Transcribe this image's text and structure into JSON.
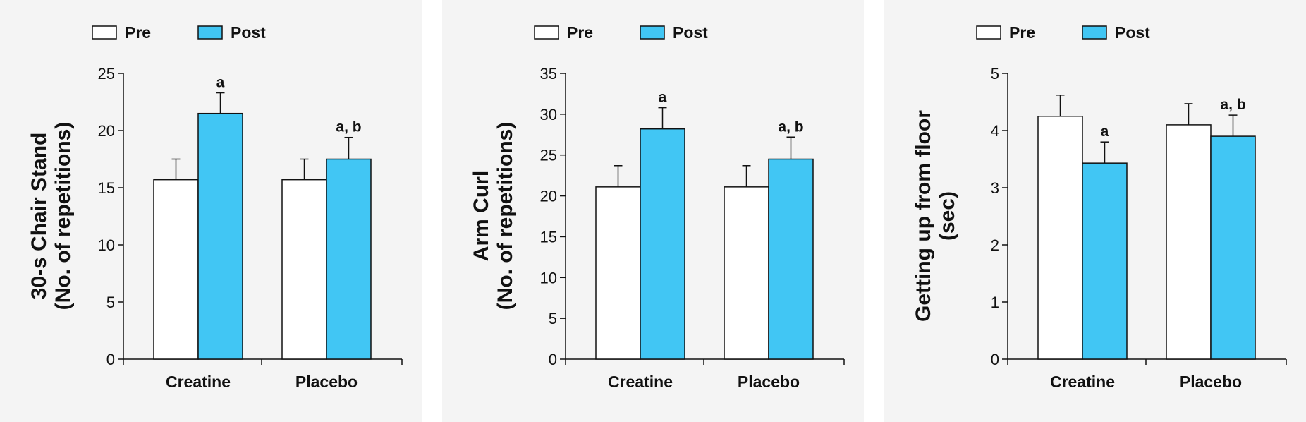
{
  "colors": {
    "pre": "#ffffff",
    "post": "#41c6f4",
    "stroke": "#111111",
    "panel_bg": "#f4f4f4"
  },
  "chart_data": [
    {
      "type": "bar",
      "ylabel": [
        "30-s Chair Stand",
        "(No. of repetitions)"
      ],
      "categories": [
        "Creatine",
        "Placebo"
      ],
      "series": [
        {
          "name": "Pre",
          "values": [
            15.7,
            15.7
          ],
          "errors": [
            1.8,
            1.8
          ]
        },
        {
          "name": "Post",
          "values": [
            21.5,
            17.5
          ],
          "errors": [
            1.8,
            1.9
          ]
        }
      ],
      "annotations": {
        "Post": [
          "a",
          "a, b"
        ]
      },
      "ylim": [
        0,
        25
      ],
      "yticks": [
        0,
        5,
        10,
        15,
        20,
        25
      ],
      "legend": "top-left"
    },
    {
      "type": "bar",
      "ylabel": [
        "Arm Curl",
        "(No. of repetitions)"
      ],
      "categories": [
        "Creatine",
        "Placebo"
      ],
      "series": [
        {
          "name": "Pre",
          "values": [
            21.1,
            21.1
          ],
          "errors": [
            2.6,
            2.6
          ]
        },
        {
          "name": "Post",
          "values": [
            28.2,
            24.5
          ],
          "errors": [
            2.6,
            2.7
          ]
        }
      ],
      "annotations": {
        "Post": [
          "a",
          "a, b"
        ]
      },
      "ylim": [
        0,
        35
      ],
      "yticks": [
        0,
        5,
        10,
        15,
        20,
        25,
        30,
        35
      ],
      "legend": "top-left"
    },
    {
      "type": "bar",
      "ylabel": [
        "Getting up from floor",
        "(sec)"
      ],
      "categories": [
        "Creatine",
        "Placebo"
      ],
      "series": [
        {
          "name": "Pre",
          "values": [
            4.25,
            4.1
          ],
          "errors": [
            0.37,
            0.37
          ]
        },
        {
          "name": "Post",
          "values": [
            3.43,
            3.9
          ],
          "errors": [
            0.37,
            0.37
          ]
        }
      ],
      "annotations": {
        "Post": [
          "a",
          "a, b"
        ]
      },
      "ylim": [
        0,
        5
      ],
      "yticks": [
        0,
        1,
        2,
        3,
        4,
        5
      ],
      "legend": "top-left"
    }
  ]
}
